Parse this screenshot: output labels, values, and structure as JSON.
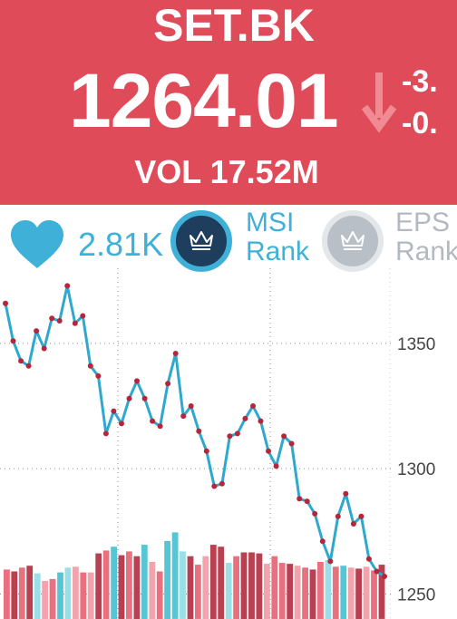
{
  "header": {
    "ticker": "SET.BK",
    "price": "1264.01",
    "change_abs": "-3.",
    "change_pct": "-0.",
    "volume": "VOL 17.52M",
    "direction": "down",
    "bg_color": "#e04b5a",
    "arrow_color": "#f08b93"
  },
  "social": {
    "likes": "2.81K",
    "heart_icon": "heart-icon",
    "msi_label_line1": "MSI",
    "msi_label_line2": "Rank",
    "eps_label_line1": "EPS",
    "eps_label_line2": "Rank",
    "rank_icon": "crown-icon",
    "accent_color": "#3fb1d9"
  },
  "chart_data": {
    "type": "line",
    "y_axis_side": "right",
    "ylim": [
      1240,
      1380
    ],
    "y_ticks": [
      "1350",
      "1300",
      "1250"
    ],
    "y_tick_values": [
      1350,
      1300,
      1250
    ],
    "grid": "dotted",
    "line_color": "#2fa8cf",
    "marker_color": "#b5263a",
    "bar_colors": [
      "#e8707f",
      "#b84050",
      "#9bdfe6",
      "#f2a3ac",
      "#56c6d4"
    ],
    "price_series": [
      1366,
      1351,
      1343,
      1341,
      1355,
      1348,
      1360,
      1359,
      1373,
      1358,
      1361,
      1341,
      1337,
      1314,
      1323,
      1318,
      1328,
      1335,
      1328,
      1319,
      1317,
      1334,
      1346,
      1321,
      1325,
      1315,
      1307,
      1293,
      1294,
      1313,
      1314,
      1320,
      1325,
      1319,
      1307,
      1301,
      1313,
      1310,
      1288,
      1287,
      1282,
      1271,
      1263,
      1281,
      1290,
      1278,
      1281,
      1264,
      1259,
      1257
    ],
    "volume_series": [
      0.52,
      0.5,
      0.54,
      0.56,
      0.48,
      0.4,
      0.42,
      0.49,
      0.54,
      0.55,
      0.49,
      0.49,
      0.69,
      0.72,
      0.76,
      0.67,
      0.71,
      0.66,
      0.78,
      0.6,
      0.5,
      0.82,
      0.91,
      0.71,
      0.66,
      0.57,
      0.66,
      0.78,
      0.76,
      0.59,
      0.66,
      0.7,
      0.7,
      0.69,
      0.58,
      0.66,
      0.59,
      0.58,
      0.56,
      0.54,
      0.52,
      0.6,
      0.62,
      0.55,
      0.56,
      0.54,
      0.53,
      0.55,
      0.51,
      0.57
    ],
    "volume_color_index": [
      0,
      1,
      0,
      1,
      2,
      3,
      0,
      4,
      2,
      3,
      0,
      3,
      1,
      0,
      4,
      1,
      0,
      1,
      4,
      3,
      0,
      4,
      4,
      2,
      1,
      0,
      3,
      1,
      1,
      2,
      0,
      1,
      1,
      1,
      3,
      0,
      0,
      1,
      3,
      0,
      1,
      0,
      2,
      0,
      4,
      3,
      1,
      3,
      0,
      1
    ]
  }
}
